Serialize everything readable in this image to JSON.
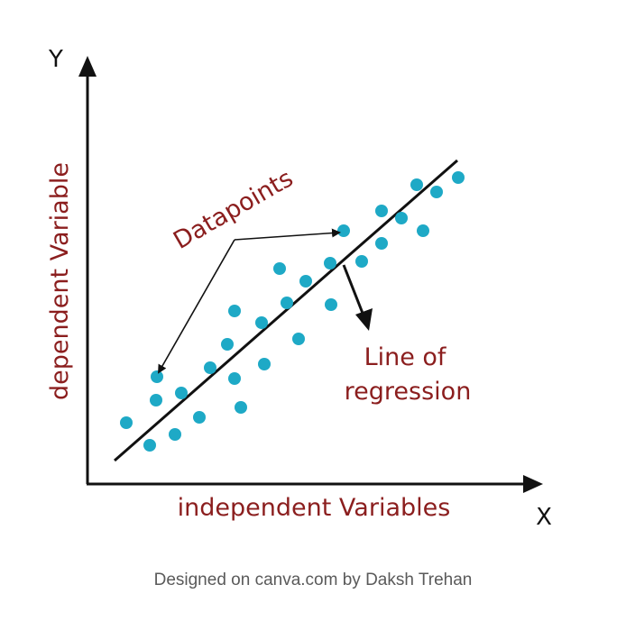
{
  "diagram": {
    "y_axis_letter": "Y",
    "x_axis_letter": "X",
    "y_axis_label": "dependent Variable",
    "x_axis_label": "independent Variables",
    "datapoints_label": "Datapoints",
    "regression_label_line1": "Line of",
    "regression_label_line2": "regression"
  },
  "colors": {
    "point": "#1ea9c6",
    "label": "#8b1e1e",
    "axis": "#111111",
    "caption": "#5a5a5a"
  },
  "caption": "Designed on canva.com by Daksh Trehan"
}
